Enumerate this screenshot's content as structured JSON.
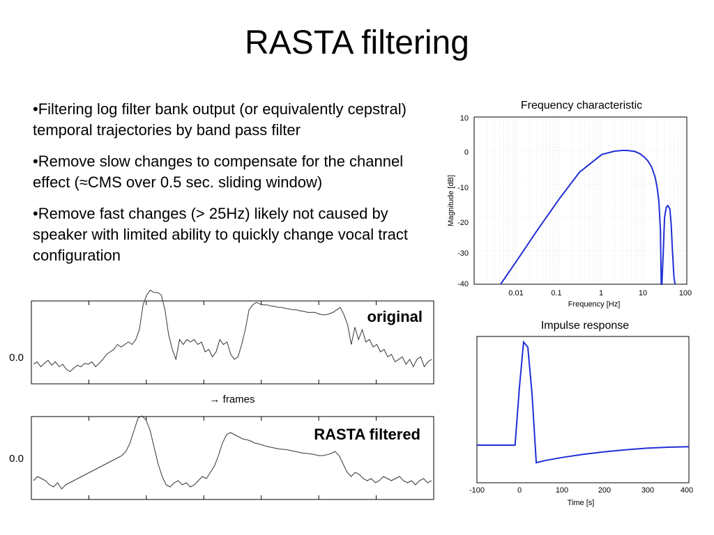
{
  "slide": {
    "title": "RASTA filtering",
    "bullets": [
      "•Filtering log filter bank output (or equivalently cepstral) temporal trajectories by band pass filter",
      "•Remove slow changes to compensate for the channel effect (≈CMS over 0.5 sec. sliding window)",
      "•Remove fast changes (> 25Hz) likely not caused by speaker with limited ability to quickly change vocal tract configuration"
    ]
  },
  "chart_data": [
    {
      "type": "line",
      "title": "Frequency characteristic",
      "xlabel": "Frequency [Hz]",
      "ylabel": "Magnitude [dB]",
      "xscale": "log",
      "xlim": [
        0.001,
        100
      ],
      "ylim": [
        -40,
        10
      ],
      "xtick_labels": [
        "0.01",
        "0.1",
        "1",
        "10",
        "100"
      ],
      "ytick_labels": [
        "10",
        "0",
        "-10",
        "-20",
        "-30",
        "-40"
      ],
      "grid": true,
      "color": "#1f2fd6",
      "x": [
        0.0042,
        0.01,
        0.03,
        0.1,
        0.3,
        1,
        2,
        3,
        4,
        6,
        8,
        10,
        12,
        15,
        18,
        20,
        22,
        24,
        25,
        26,
        28,
        30,
        33,
        36,
        40,
        43,
        46,
        50,
        53
      ],
      "y": [
        -40,
        -33,
        -24,
        -14.5,
        -6.5,
        -1.2,
        -0.2,
        0,
        0,
        -0.3,
        -1,
        -2,
        -3,
        -5,
        -8,
        -11,
        -15,
        -24,
        -40,
        -40,
        -30,
        -20,
        -17,
        -16.5,
        -17.5,
        -22,
        -30,
        -38,
        -40
      ]
    },
    {
      "type": "line",
      "title": "Impulse response",
      "xlabel": "Time [s]",
      "xlim": [
        -100,
        400
      ],
      "xtick_labels": [
        "-100",
        "0",
        "100",
        "200",
        "300",
        "400"
      ],
      "color": "#1f2fd6",
      "x": [
        -100,
        -10,
        0,
        10,
        20,
        30,
        40,
        60,
        100,
        150,
        200,
        250,
        300,
        350,
        400
      ],
      "y": [
        0,
        0,
        0.55,
        1.0,
        0.95,
        0.5,
        -0.17,
        -0.15,
        -0.12,
        -0.09,
        -0.065,
        -0.045,
        -0.03,
        -0.02,
        -0.015
      ]
    },
    {
      "type": "line",
      "title": "original",
      "xlabel": "→ frames",
      "ytick_labels": [
        "0.0"
      ],
      "color": "#333333",
      "values": [
        0.1,
        0.15,
        0.05,
        0.12,
        0.18,
        0.08,
        0.15,
        0.05,
        0.1,
        0.0,
        -0.05,
        0.02,
        0.08,
        0.05,
        0.12,
        0.1,
        0.15,
        0.05,
        0.12,
        0.2,
        0.3,
        0.35,
        0.4,
        0.5,
        0.45,
        0.5,
        0.55,
        0.5,
        0.6,
        0.8,
        1.3,
        1.5,
        1.6,
        1.55,
        1.55,
        1.5,
        1.2,
        0.7,
        0.4,
        0.2,
        0.6,
        0.5,
        0.6,
        0.55,
        0.6,
        0.5,
        0.55,
        0.35,
        0.4,
        0.25,
        0.35,
        0.6,
        0.5,
        0.55,
        0.3,
        0.2,
        0.25,
        0.5,
        0.8,
        1.2,
        1.3,
        1.35,
        1.32,
        1.3,
        1.3,
        1.28,
        1.27,
        1.25,
        1.25,
        1.23,
        1.22,
        1.2,
        1.2,
        1.18,
        1.17,
        1.15,
        1.15,
        1.15,
        1.12,
        1.1,
        1.1,
        1.12,
        1.15,
        1.2,
        1.25,
        1.1,
        0.9,
        0.5,
        0.85,
        0.6,
        0.8,
        0.55,
        0.6,
        0.45,
        0.5,
        0.35,
        0.4,
        0.25,
        0.3,
        0.15,
        0.2,
        0.25,
        0.1,
        0.2,
        0.05,
        0.2,
        0.25,
        0.05,
        0.15,
        0.2
      ]
    },
    {
      "type": "line",
      "title": "RASTA filtered",
      "ytick_labels": [
        "0.0"
      ],
      "color": "#333333",
      "values": [
        0.0,
        0.1,
        0.05,
        0.0,
        -0.1,
        -0.15,
        -0.05,
        -0.2,
        -0.1,
        -0.05,
        0.0,
        0.05,
        0.1,
        0.15,
        0.2,
        0.25,
        0.3,
        0.35,
        0.4,
        0.45,
        0.5,
        0.55,
        0.6,
        0.7,
        0.9,
        1.2,
        1.5,
        1.55,
        1.45,
        1.2,
        0.8,
        0.4,
        0.1,
        -0.1,
        -0.15,
        -0.05,
        0.0,
        -0.1,
        -0.05,
        -0.15,
        -0.1,
        0.0,
        0.1,
        0.05,
        0.2,
        0.35,
        0.6,
        0.9,
        1.1,
        1.15,
        1.1,
        1.05,
        1.0,
        0.98,
        0.95,
        0.9,
        0.88,
        0.85,
        0.82,
        0.8,
        0.78,
        0.76,
        0.75,
        0.74,
        0.72,
        0.7,
        0.68,
        0.66,
        0.65,
        0.64,
        0.62,
        0.6,
        0.6,
        0.62,
        0.65,
        0.7,
        0.6,
        0.4,
        0.2,
        0.1,
        0.2,
        0.15,
        0.05,
        0.0,
        0.05,
        -0.05,
        0.0,
        0.1,
        0.05,
        0.0,
        0.05,
        0.1,
        0.0,
        -0.05,
        0.0,
        -0.1,
        0.0,
        0.05,
        -0.05,
        0.0
      ]
    }
  ]
}
